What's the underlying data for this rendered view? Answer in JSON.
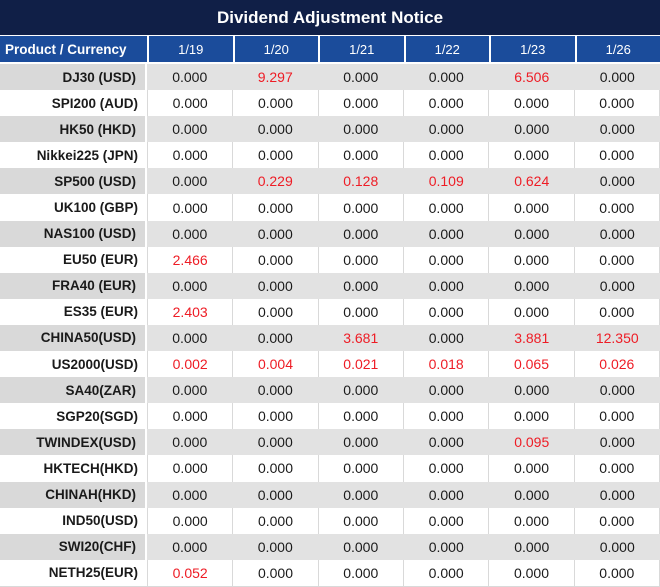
{
  "title": "Dividend Adjustment Notice",
  "chart_data": {
    "type": "table",
    "title": "Dividend Adjustment Notice",
    "product_header": "Product / Currency",
    "date_columns": [
      "1/19",
      "1/20",
      "1/21",
      "1/22",
      "1/23",
      "1/26"
    ],
    "highlight_rule": "non-zero dividend values are rendered in red",
    "rows": [
      {
        "product": "DJ30 (USD)",
        "values": [
          "0.000",
          "9.297",
          "0.000",
          "0.000",
          "6.506",
          "0.000"
        ]
      },
      {
        "product": "SPI200 (AUD)",
        "values": [
          "0.000",
          "0.000",
          "0.000",
          "0.000",
          "0.000",
          "0.000"
        ]
      },
      {
        "product": "HK50 (HKD)",
        "values": [
          "0.000",
          "0.000",
          "0.000",
          "0.000",
          "0.000",
          "0.000"
        ]
      },
      {
        "product": "Nikkei225 (JPN)",
        "values": [
          "0.000",
          "0.000",
          "0.000",
          "0.000",
          "0.000",
          "0.000"
        ]
      },
      {
        "product": "SP500 (USD)",
        "values": [
          "0.000",
          "0.229",
          "0.128",
          "0.109",
          "0.624",
          "0.000"
        ]
      },
      {
        "product": "UK100 (GBP)",
        "values": [
          "0.000",
          "0.000",
          "0.000",
          "0.000",
          "0.000",
          "0.000"
        ]
      },
      {
        "product": "NAS100 (USD)",
        "values": [
          "0.000",
          "0.000",
          "0.000",
          "0.000",
          "0.000",
          "0.000"
        ]
      },
      {
        "product": "EU50 (EUR)",
        "values": [
          "2.466",
          "0.000",
          "0.000",
          "0.000",
          "0.000",
          "0.000"
        ]
      },
      {
        "product": "FRA40 (EUR)",
        "values": [
          "0.000",
          "0.000",
          "0.000",
          "0.000",
          "0.000",
          "0.000"
        ]
      },
      {
        "product": "ES35 (EUR)",
        "values": [
          "2.403",
          "0.000",
          "0.000",
          "0.000",
          "0.000",
          "0.000"
        ]
      },
      {
        "product": "CHINA50(USD)",
        "values": [
          "0.000",
          "0.000",
          "3.681",
          "0.000",
          "3.881",
          "12.350"
        ]
      },
      {
        "product": "US2000(USD)",
        "values": [
          "0.002",
          "0.004",
          "0.021",
          "0.018",
          "0.065",
          "0.026"
        ]
      },
      {
        "product": "SA40(ZAR)",
        "values": [
          "0.000",
          "0.000",
          "0.000",
          "0.000",
          "0.000",
          "0.000"
        ]
      },
      {
        "product": "SGP20(SGD)",
        "values": [
          "0.000",
          "0.000",
          "0.000",
          "0.000",
          "0.000",
          "0.000"
        ]
      },
      {
        "product": "TWINDEX(USD)",
        "values": [
          "0.000",
          "0.000",
          "0.000",
          "0.000",
          "0.095",
          "0.000"
        ]
      },
      {
        "product": "HKTECH(HKD)",
        "values": [
          "0.000",
          "0.000",
          "0.000",
          "0.000",
          "0.000",
          "0.000"
        ]
      },
      {
        "product": "CHINAH(HKD)",
        "values": [
          "0.000",
          "0.000",
          "0.000",
          "0.000",
          "0.000",
          "0.000"
        ]
      },
      {
        "product": "IND50(USD)",
        "values": [
          "0.000",
          "0.000",
          "0.000",
          "0.000",
          "0.000",
          "0.000"
        ]
      },
      {
        "product": "SWI20(CHF)",
        "values": [
          "0.000",
          "0.000",
          "0.000",
          "0.000",
          "0.000",
          "0.000"
        ]
      },
      {
        "product": "NETH25(EUR)",
        "values": [
          "0.052",
          "0.000",
          "0.000",
          "0.000",
          "0.000",
          "0.000"
        ]
      }
    ]
  },
  "colors": {
    "title_bar_bg": "#101f47",
    "header_bg": "#1b4c9b",
    "row_alt_bg": "#e2e2e2",
    "product_alt_bg": "#d9d9d9",
    "highlight_value": "#ee1c25",
    "text": "#1a1a1a",
    "grid_line": "#d9d9d9"
  }
}
